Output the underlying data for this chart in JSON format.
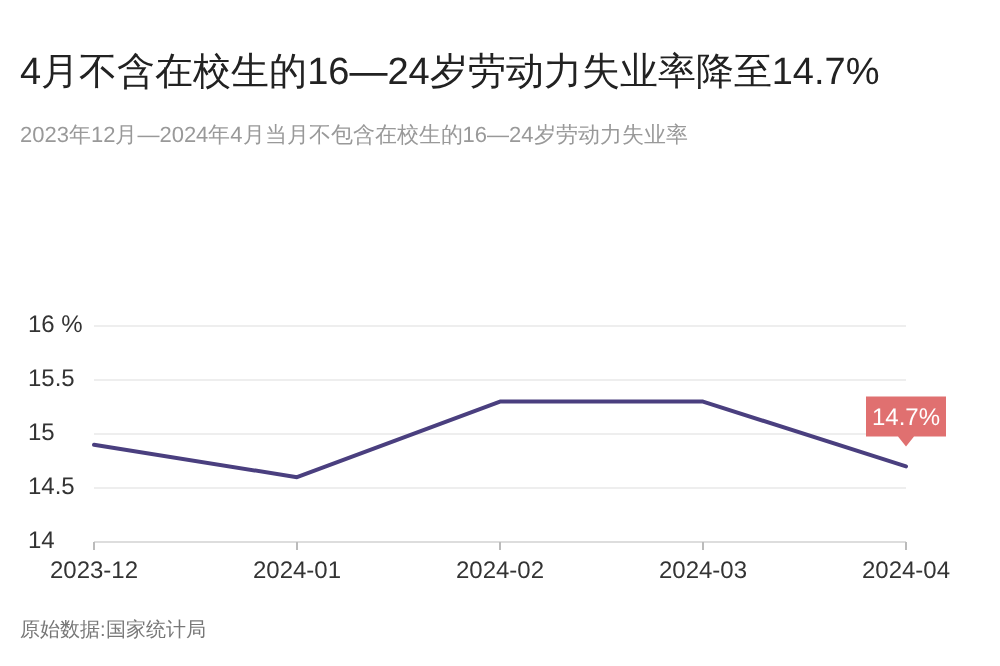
{
  "chart_data": {
    "type": "line",
    "title": "4月不含在校生的16—24岁劳动力失业率降至14.7%",
    "subtitle": "2023年12月—2024年4月当月不包含在校生的16—24岁劳动力失业率",
    "categories": [
      "2023-12",
      "2024-01",
      "2024-02",
      "2024-03",
      "2024-04"
    ],
    "series": [
      {
        "color": "#4a3f7f",
        "values": [
          14.9,
          14.6,
          15.3,
          15.3,
          14.7
        ],
        "value_labels": [
          null,
          null,
          null,
          null,
          "14.7%"
        ]
      }
    ],
    "ylim": [
      14,
      16
    ],
    "yticks": [
      14,
      14.5,
      15,
      15.5,
      {
        "value": 16,
        "label": "16 %"
      }
    ],
    "grid": "y",
    "marker": "none",
    "annotations": [
      "原始数据:国家统计局"
    ]
  }
}
